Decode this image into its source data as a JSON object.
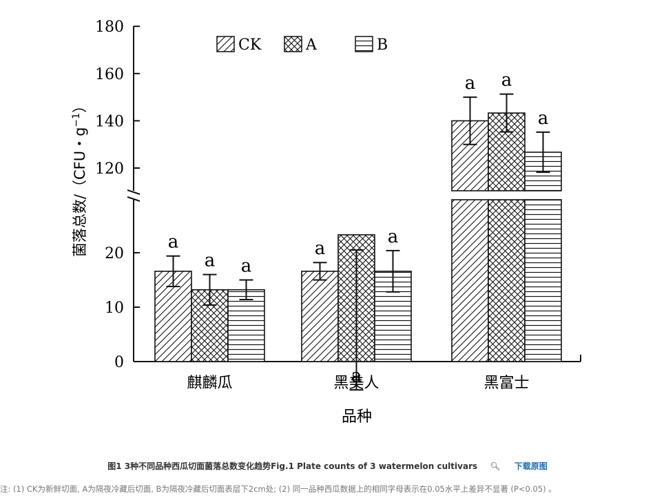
{
  "chart_data": {
    "type": "bar",
    "categories": [
      "麒麟瓜",
      "黑美人",
      "黑富士"
    ],
    "series": [
      {
        "name": "CK",
        "values": [
          16.6,
          16.6,
          140
        ],
        "errors": [
          2.8,
          1.6,
          10
        ],
        "letters": [
          "a",
          "a",
          "a"
        ],
        "pattern": "diagonal"
      },
      {
        "name": "A",
        "values": [
          13.2,
          23.3,
          143.3
        ],
        "errors": [
          2.8,
          2.8,
          8
        ],
        "letters": [
          "a",
          "a",
          "a"
        ],
        "pattern": "crosshatch"
      },
      {
        "name": "B",
        "values": [
          13.2,
          16.6,
          126.7
        ],
        "errors": [
          1.8,
          3.8,
          8.5
        ],
        "letters": [
          "a",
          "a",
          "a"
        ],
        "pattern": "horizontal"
      }
    ],
    "xlabel": "品种",
    "ylabel": "菌落总数/（CFU・g",
    "ylabel_sup": "−1",
    "ylabel_close": "）",
    "y_axis_break": {
      "lower": [
        0,
        25
      ],
      "upper": [
        110,
        180
      ]
    },
    "yticks_lower": [
      "0",
      "10",
      "20"
    ],
    "yticks_upper": [
      "120",
      "140",
      "160",
      "180"
    ],
    "legend_position": "top",
    "grid": false
  },
  "caption": {
    "text": "图1 3种不同品种西瓜切面菌落总数变化趋势Fig.1 Plate counts of 3 watermelon cultivars",
    "zoom_icon": "magnifier-icon",
    "download_label": "下载原图"
  },
  "note": "注: (1) CK为新鲜切面, A为隔夜冷藏后切面, B为隔夜冷藏后切面表层下2cm处; (2) 同一品种西瓜数据上的相同字母表示在0.05水平上差异不显著 (P<0.05) 。"
}
